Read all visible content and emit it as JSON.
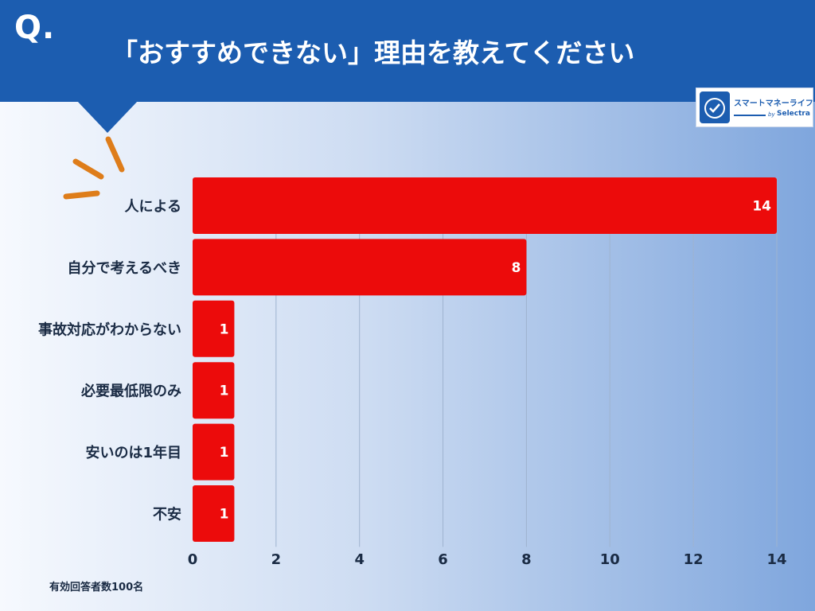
{
  "header": {
    "q_mark": "Q.",
    "title": "「おすすめできない」理由を教えてください"
  },
  "logo": {
    "name": "スマートマネーライフ",
    "by": "by",
    "brand": "Selectra"
  },
  "footnote": "有効回答者数100名",
  "colors": {
    "header_blue": "#1c5db0",
    "bar_red": "#ec0b0b",
    "accent_orange": "#de7d1a",
    "label_navy": "#1a2b44"
  },
  "chart_data": {
    "type": "bar",
    "orientation": "horizontal",
    "categories": [
      "人による",
      "自分で考えるべき",
      "事故対応がわからない",
      "必要最低限のみ",
      "安いのは1年目",
      "不安"
    ],
    "values": [
      14,
      8,
      1,
      1,
      1,
      1
    ],
    "xlim": [
      0,
      14
    ],
    "xticks": [
      0,
      2,
      4,
      6,
      8,
      10,
      12,
      14
    ],
    "grid": true,
    "data_labels": true
  }
}
